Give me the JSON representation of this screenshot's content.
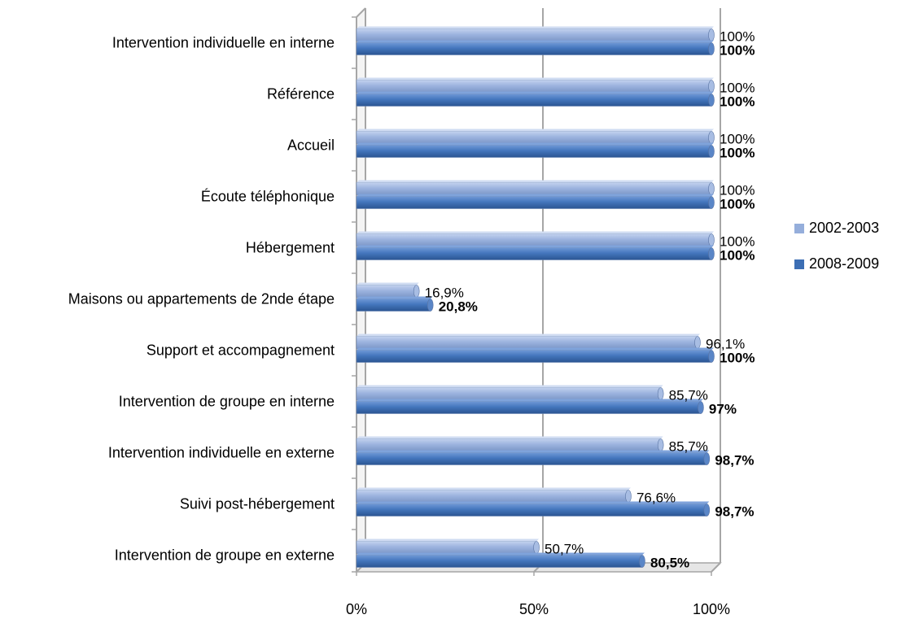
{
  "chart_data": {
    "type": "bar",
    "orientation": "horizontal",
    "categories": [
      "Intervention individuelle en interne",
      "Référence",
      "Accueil",
      "Écoute téléphonique",
      "Hébergement",
      "Maisons ou appartements de 2nde étape",
      "Support et accompagnement",
      "Intervention de groupe en interne",
      "Intervention individuelle en externe",
      "Suivi post-hébergement",
      "Intervention de groupe en externe"
    ],
    "series": [
      {
        "name": "2002-2003",
        "color": "#95aedb",
        "values": [
          100,
          100,
          100,
          100,
          100,
          16.9,
          96.1,
          85.7,
          85.7,
          76.6,
          50.7
        ],
        "labels": [
          "100%",
          "100%",
          "100%",
          "100%",
          "100%",
          "16,9%",
          "96,1%",
          "85,7%",
          "85,7%",
          "76,6%",
          "50,7%"
        ]
      },
      {
        "name": "2008-2009",
        "color": "#3c6eb4",
        "values": [
          100,
          100,
          100,
          100,
          100,
          20.8,
          100,
          97,
          98.7,
          98.7,
          80.5
        ],
        "labels": [
          "100%",
          "100%",
          "100%",
          "100%",
          "100%",
          "20,8%",
          "100%",
          "97%",
          "98,7%",
          "98,7%",
          "80,5%"
        ]
      }
    ],
    "x_ticks": [
      "0%",
      "50%",
      "100%"
    ],
    "xlim": [
      0,
      100
    ],
    "grid": true,
    "legend_position": "right",
    "title": "",
    "xlabel": "",
    "ylabel": ""
  }
}
